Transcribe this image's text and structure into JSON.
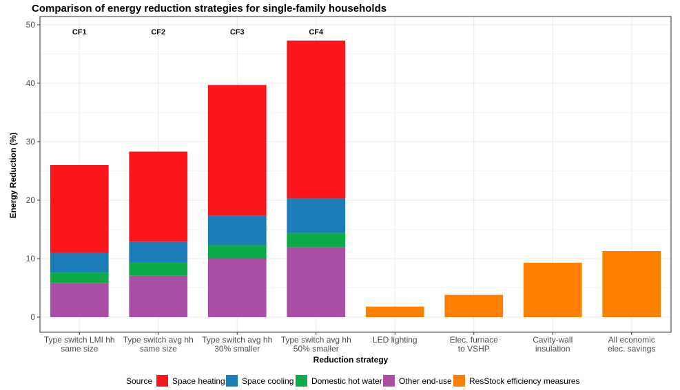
{
  "chart_data": {
    "type": "bar",
    "stacked": true,
    "title": "Comparison of energy reduction strategies for single-family households",
    "xlabel": "Reduction strategy",
    "ylabel": "Energy Reduction (%)",
    "ylim": [
      0,
      51
    ],
    "yticks": [
      0,
      10,
      20,
      30,
      40,
      50
    ],
    "grid": true,
    "legend_position": "bottom",
    "legend_title": "Source",
    "categories": [
      [
        "Type switch LMI hh",
        "same size"
      ],
      [
        "Type switch avg hh",
        "same size"
      ],
      [
        "Type switch avg hh",
        "30% smaller"
      ],
      [
        "Type switch avg hh",
        "50% smaller"
      ],
      [
        "LED lighting"
      ],
      [
        "Elec. furnace",
        "to VSHP"
      ],
      [
        "Cavity-wall",
        "insulation"
      ],
      [
        "All economic",
        "elec. savings"
      ]
    ],
    "bar_annotations": [
      "CF1",
      "CF2",
      "CF3",
      "CF4",
      "",
      "",
      "",
      ""
    ],
    "series": [
      {
        "name": "Other end-use",
        "color": "#AA4FA8",
        "values": [
          5.8,
          7.1,
          10.0,
          11.9,
          0,
          0,
          0,
          0
        ]
      },
      {
        "name": "Domestic hot water",
        "color": "#0BAC48",
        "values": [
          1.8,
          2.2,
          2.3,
          2.5,
          0,
          0,
          0,
          0
        ]
      },
      {
        "name": "Space cooling",
        "color": "#1A7DB7",
        "values": [
          3.4,
          3.6,
          5.1,
          5.9,
          0,
          0,
          0,
          0
        ]
      },
      {
        "name": "Space heating",
        "color": "#FA161A",
        "values": [
          15.0,
          15.4,
          22.3,
          27.0,
          0,
          0,
          0,
          0
        ]
      },
      {
        "name": "ResStock efficiency measures",
        "color": "#FF7F00",
        "values": [
          0,
          0,
          0,
          0,
          1.8,
          3.8,
          9.3,
          11.3
        ]
      }
    ],
    "legend_order": [
      "Space heating",
      "Space cooling",
      "Domestic hot water",
      "Other end-use",
      "ResStock efficiency measures"
    ]
  }
}
